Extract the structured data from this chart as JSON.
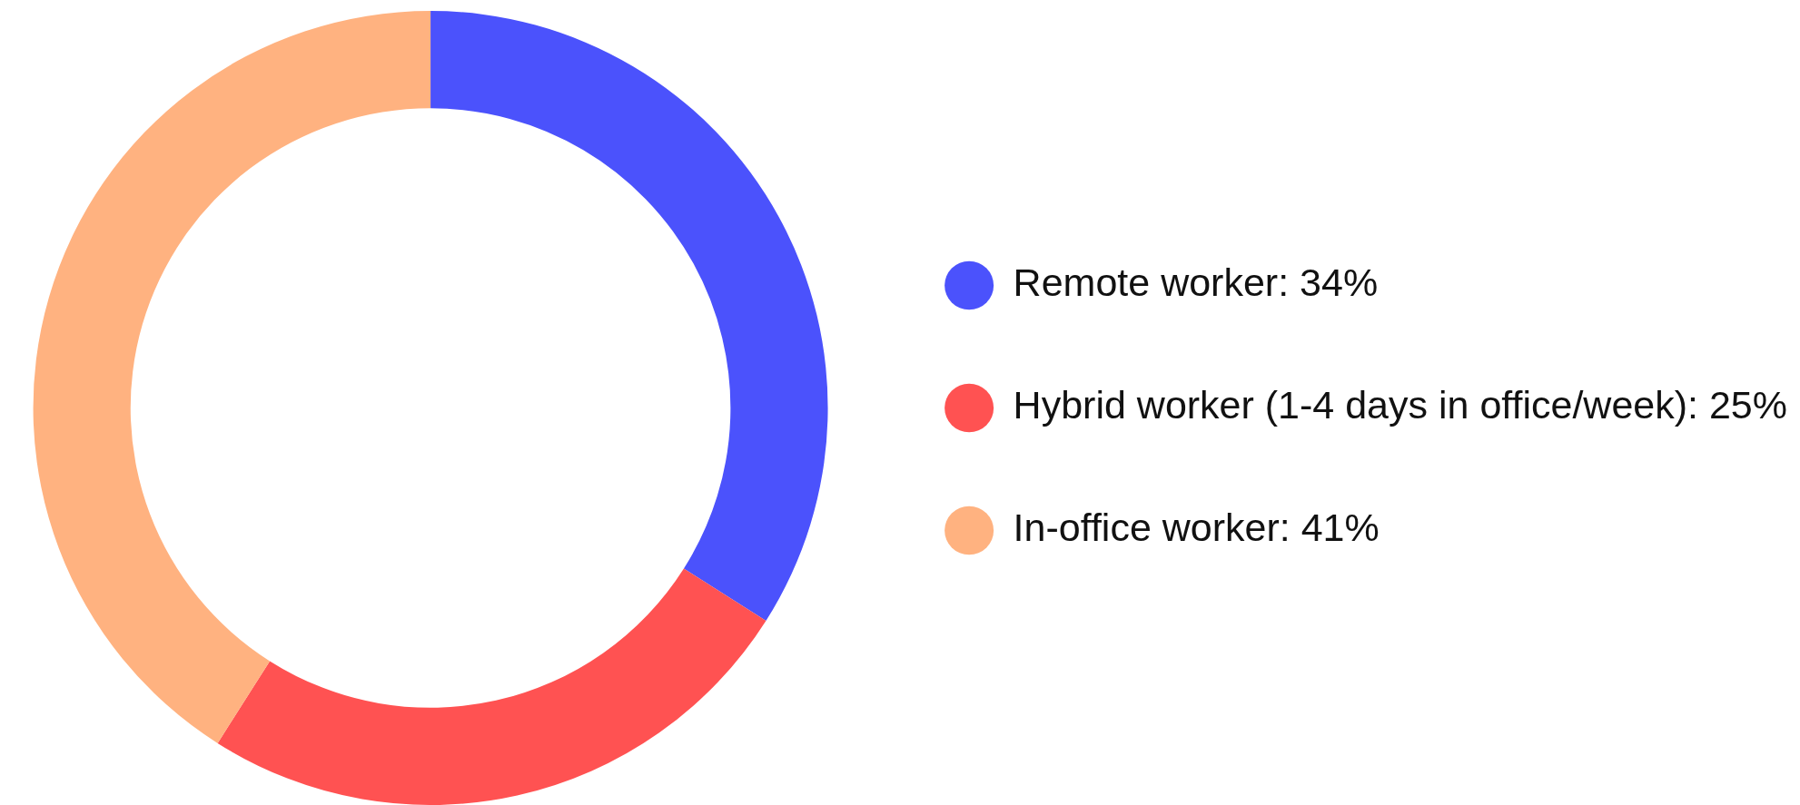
{
  "chart_data": {
    "type": "donut",
    "categories": [
      "Remote worker",
      "Hybrid worker (1-4 days in office/week)",
      "In-office worker"
    ],
    "values": [
      34,
      25,
      41
    ],
    "value_labels": [
      "34%",
      "25%",
      "41%"
    ],
    "colors": [
      "#4b52fc",
      "#ff5252",
      "#ffb280"
    ],
    "legend": "right"
  }
}
